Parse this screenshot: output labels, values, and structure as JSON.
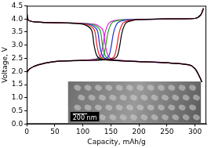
{
  "chart_data": {
    "type": "line",
    "x_label": "Capacity, mAh/g",
    "y_label": "Voltage, V",
    "xlim": [
      0,
      320
    ],
    "xticks": [
      0,
      50,
      100,
      150,
      200,
      250,
      300
    ],
    "ylim": [
      0,
      4.5
    ],
    "yticks": [
      {
        "value": 0,
        "label": "0.0"
      },
      0.5,
      {
        "value": 1,
        "label": "1.0"
      },
      1.5,
      {
        "value": 2,
        "label": "2.0"
      },
      2.5,
      {
        "value": 3,
        "label": "3.0"
      },
      3.5,
      {
        "value": 4,
        "label": "4.0"
      },
      4.5
    ],
    "grid": false,
    "annotations": [
      {
        "text": "200 nm"
      }
    ],
    "series": [
      {
        "color": "#000000",
        "x": [
          0,
          5,
          20,
          50,
          100,
          145,
          160,
          165,
          170,
          177,
          190,
          200,
          250,
          300,
          310,
          315
        ],
        "values": [
          1.95,
          2.1,
          2.25,
          2.38,
          2.42,
          2.45,
          2.55,
          2.9,
          3.5,
          3.85,
          3.95,
          3.98,
          4.0,
          4.02,
          4.15,
          4.4
        ]
      },
      {
        "color": "#000000",
        "x": [
          0,
          3,
          20,
          60,
          100,
          115,
          120,
          125,
          135,
          200,
          250,
          290,
          300,
          308,
          312
        ],
        "values": [
          4.3,
          3.95,
          3.88,
          3.85,
          3.8,
          3.6,
          3.0,
          2.6,
          2.45,
          2.38,
          2.33,
          2.25,
          2.1,
          1.8,
          1.6
        ]
      },
      {
        "color": "#e8202a",
        "x": [
          0,
          5,
          20,
          50,
          100,
          140,
          155,
          160,
          165,
          172,
          185,
          200,
          250,
          300,
          310,
          315
        ],
        "values": [
          1.95,
          2.1,
          2.25,
          2.38,
          2.42,
          2.45,
          2.55,
          2.9,
          3.5,
          3.85,
          3.95,
          3.98,
          4.0,
          4.02,
          4.15,
          4.4
        ]
      },
      {
        "color": "#e8202a",
        "x": [
          0,
          3,
          20,
          60,
          105,
          120,
          125,
          130,
          140,
          200,
          250,
          290,
          300,
          308,
          312
        ],
        "values": [
          4.3,
          3.95,
          3.88,
          3.85,
          3.8,
          3.6,
          3.0,
          2.6,
          2.45,
          2.38,
          2.33,
          2.25,
          2.1,
          1.8,
          1.6
        ]
      },
      {
        "color": "#2030d0",
        "x": [
          0,
          5,
          20,
          50,
          100,
          130,
          145,
          150,
          155,
          162,
          175,
          200,
          250,
          300,
          310,
          315
        ],
        "values": [
          1.95,
          2.1,
          2.25,
          2.38,
          2.42,
          2.45,
          2.55,
          2.9,
          3.5,
          3.85,
          3.95,
          3.98,
          4.0,
          4.02,
          4.15,
          4.4
        ]
      },
      {
        "color": "#2030d0",
        "x": [
          0,
          3,
          20,
          60,
          110,
          125,
          130,
          135,
          145,
          200,
          250,
          290,
          300,
          308,
          312
        ],
        "values": [
          4.3,
          3.95,
          3.88,
          3.85,
          3.8,
          3.6,
          3.0,
          2.6,
          2.45,
          2.38,
          2.33,
          2.25,
          2.1,
          1.8,
          1.6
        ]
      },
      {
        "color": "#20a020",
        "x": [
          0,
          5,
          20,
          50,
          100,
          120,
          135,
          140,
          145,
          152,
          165,
          200,
          250,
          300,
          310,
          315
        ],
        "values": [
          1.95,
          2.1,
          2.25,
          2.38,
          2.42,
          2.45,
          2.55,
          2.9,
          3.5,
          3.85,
          3.95,
          3.98,
          4.0,
          4.02,
          4.15,
          4.4
        ]
      },
      {
        "color": "#20a020",
        "x": [
          0,
          3,
          20,
          60,
          115,
          130,
          135,
          140,
          150,
          200,
          250,
          290,
          300,
          308,
          312
        ],
        "values": [
          4.3,
          3.95,
          3.88,
          3.85,
          3.8,
          3.6,
          3.0,
          2.6,
          2.45,
          2.38,
          2.33,
          2.25,
          2.1,
          1.8,
          1.6
        ]
      },
      {
        "color": "#e020e0",
        "x": [
          0,
          5,
          20,
          50,
          100,
          115,
          130,
          135,
          140,
          147,
          160,
          200,
          250,
          300,
          310,
          315
        ],
        "values": [
          1.95,
          2.1,
          2.25,
          2.38,
          2.42,
          2.45,
          2.55,
          2.9,
          3.5,
          3.85,
          3.95,
          3.98,
          4.0,
          4.02,
          4.15,
          4.4
        ]
      },
      {
        "color": "#e020e0",
        "x": [
          0,
          3,
          20,
          60,
          120,
          135,
          140,
          145,
          155,
          200,
          250,
          290,
          300,
          308,
          312
        ],
        "values": [
          4.3,
          3.95,
          3.88,
          3.85,
          3.8,
          3.6,
          3.0,
          2.6,
          2.45,
          2.38,
          2.33,
          2.25,
          2.1,
          1.8,
          1.6
        ]
      }
    ]
  }
}
